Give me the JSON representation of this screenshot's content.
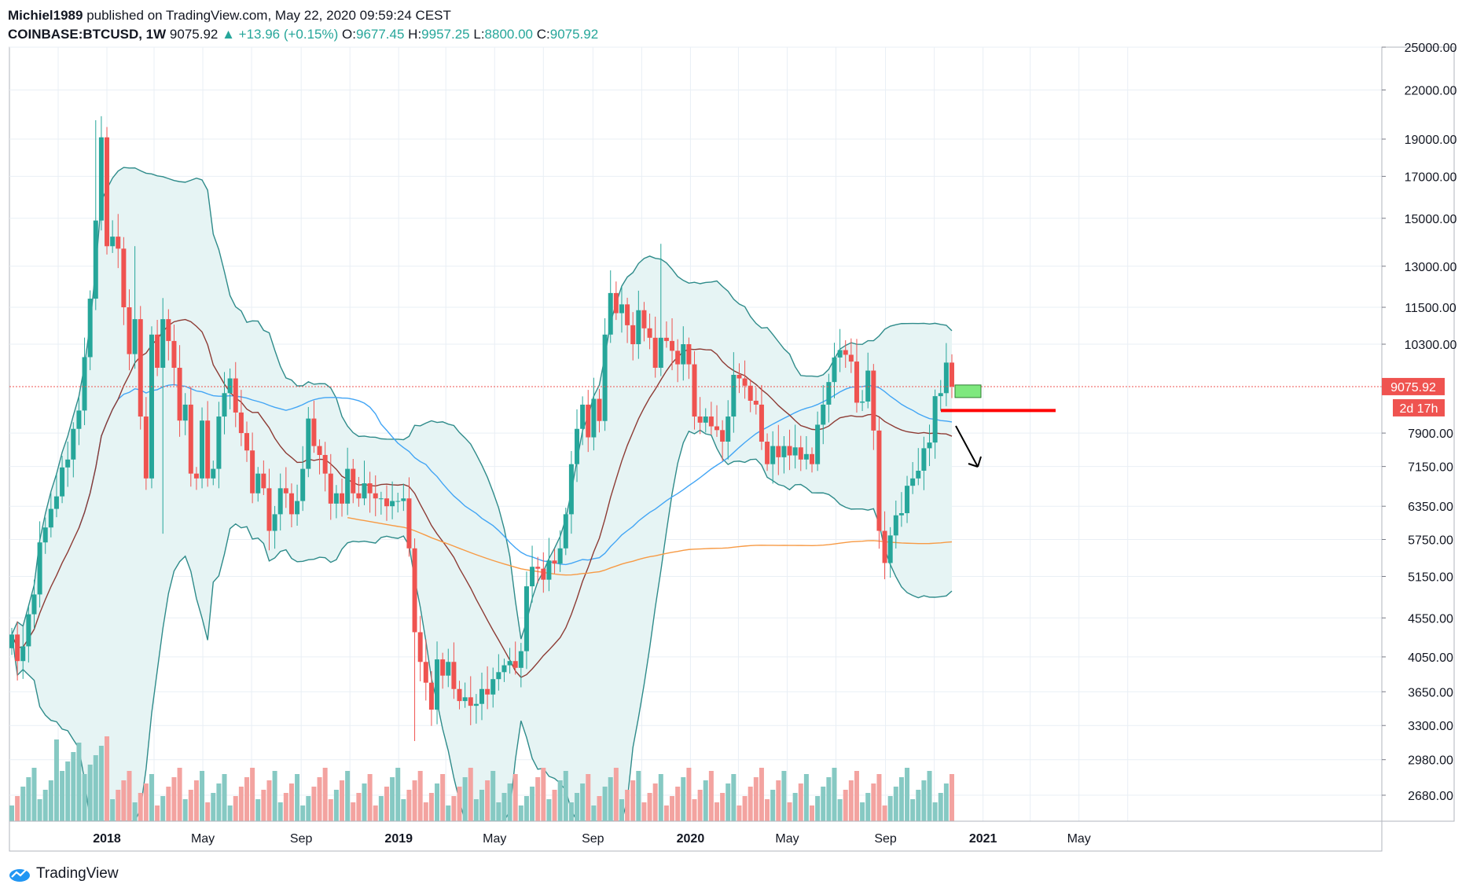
{
  "header": {
    "author": "Michiel1989",
    "published": "published on TradingView.com, May 22, 2020 09:59:24 CEST",
    "symbol": "COINBASE:BTCUSD, 1W",
    "last": "9075.92",
    "change": "▲ +13.96 (+0.15%)",
    "o_label": "O:",
    "o_value": "9677.45",
    "h_label": "H:",
    "h_value": "9957.25",
    "l_label": "L:",
    "l_value": "8800.00",
    "c_label": "C:",
    "c_value": "9075.92"
  },
  "footer": {
    "brand": "TradingView",
    "logo_icon": "tradingview-logo-icon"
  },
  "price_tag": {
    "value": "9075.92",
    "countdown": "2d 17h"
  },
  "colors": {
    "up": "#26a69a",
    "down": "#ef5350",
    "up_vol": "#86c9c3",
    "down_vol": "#f3a3a0",
    "bb_line": "#2e8b8a",
    "bb_fill": "#e6f4f4",
    "ma20": "#8d3b34",
    "ma50": "#42a5f5",
    "ma200": "#f79a44",
    "grid": "#e9eff5",
    "level_line": "#ff0000",
    "target_box": "#7ee87e"
  },
  "chart_data": {
    "type": "candlestick",
    "timeframe": "1W",
    "scale": "log",
    "y_ticks": [
      25000,
      22000,
      19000,
      17000,
      15000,
      13000,
      11500,
      10300,
      7900,
      7150,
      6350,
      5750,
      5150,
      4550,
      4050,
      3650,
      3300,
      2980,
      2680
    ],
    "y_tick_labels": [
      "25000.00",
      "22000.00",
      "19000.00",
      "17000.00",
      "15000.00",
      "13000.00",
      "11500.00",
      "10300.00",
      "7900.00",
      "7150.00",
      "6350.00",
      "5750.00",
      "5150.00",
      "4550.00",
      "4050.00",
      "3650.00",
      "3300.00",
      "2980.00",
      "2680.00"
    ],
    "x_labels": [
      "2018",
      "May",
      "Sep",
      "2019",
      "May",
      "Sep",
      "2020",
      "May",
      "Sep",
      "2021",
      "May"
    ],
    "x_label_dates": [
      "2018-01-01",
      "2018-05-01",
      "2018-09-01",
      "2019-01-01",
      "2019-05-01",
      "2019-09-01",
      "2020-01-01",
      "2020-05-01",
      "2020-09-01",
      "2021-01-01",
      "2021-05-01"
    ],
    "first_bar_date": "2017-09-04",
    "closes": [
      4330,
      4000,
      4180,
      4600,
      4880,
      5700,
      5960,
      6300,
      6540,
      7130,
      7300,
      8000,
      8450,
      9910,
      11800,
      14900,
      19100,
      13800,
      14200,
      13700,
      11500,
      10000,
      11100,
      8300,
      6900,
      10600,
      9600,
      11100,
      10400,
      9600,
      8200,
      8600,
      7000,
      6900,
      8200,
      6900,
      7100,
      8300,
      8900,
      9300,
      8400,
      7900,
      7500,
      6600,
      7000,
      6700,
      5900,
      6200,
      6700,
      6600,
      6200,
      6450,
      7100,
      8250,
      7600,
      7400,
      7000,
      6400,
      6600,
      6400,
      7100,
      6600,
      6500,
      6800,
      6600,
      6500,
      6500,
      6350,
      6450,
      6450,
      6500,
      5600,
      4360,
      3990,
      3750,
      3460,
      4020,
      3830,
      3990,
      3680,
      3550,
      3590,
      3500,
      3520,
      3680,
      3620,
      3790,
      3870,
      3950,
      4000,
      3920,
      4120,
      5000,
      5300,
      5270,
      5100,
      5400,
      5350,
      5600,
      6200,
      7200,
      8000,
      8600,
      7800,
      8750,
      8190,
      10600,
      12000,
      11300,
      11600,
      10900,
      10300,
      11400,
      10800,
      10500,
      9600,
      10500,
      10400,
      10100,
      9700,
      10300,
      9700,
      8300,
      8150,
      8300,
      8060,
      7970,
      7700,
      8300,
      9400,
      9300,
      9100,
      8700,
      8600,
      7700,
      7200,
      7600,
      7350,
      7600,
      7390,
      7570,
      7300,
      7420,
      7200,
      8100,
      8600,
      9200,
      9900,
      10120,
      9980,
      9780,
      8650,
      8680,
      9520,
      7960,
      5900,
      5360,
      5820,
      6180,
      6220,
      6750,
      6900,
      7060,
      7550,
      7680,
      8820,
      8900,
      9750,
      9075
    ],
    "last_price": 9075.92,
    "volume_scale": "relative",
    "levels": [
      {
        "type": "horizontal",
        "price": 8450,
        "color": "#ff0000"
      }
    ],
    "annotations": [
      "green target box near 9000",
      "arrow pointing down"
    ]
  }
}
